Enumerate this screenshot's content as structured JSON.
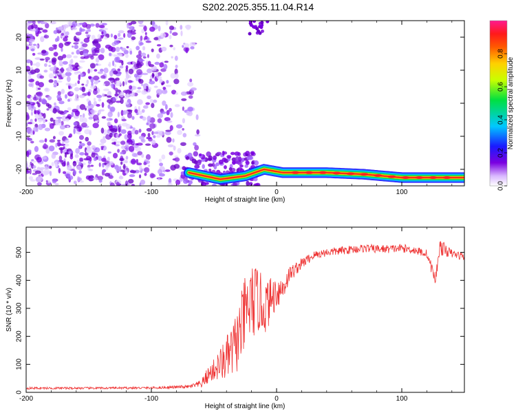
{
  "figure": {
    "title": "S202.2025.355.11.04.R14"
  },
  "chart_data": [
    {
      "type": "heatmap",
      "xlabel": "Height of straight line (km)",
      "ylabel": "Frequency (Hz)",
      "xlim": [
        -200,
        150
      ],
      "ylim": [
        -25,
        25
      ],
      "xticks": [
        -200,
        -100,
        0,
        100
      ],
      "xtick_labels": [
        "-200",
        "-100",
        "0",
        "100"
      ],
      "yticks": [
        -20,
        -10,
        0,
        10,
        20
      ],
      "ytick_labels": [
        "-20",
        "-10",
        "0",
        "10",
        "20"
      ],
      "grid": false,
      "colormap": "rainbow (purple-blue-cyan-green-yellow-orange-red-pink)",
      "colorbar": {
        "label": "Normalized spectral amplitude",
        "range": [
          0,
          1
        ],
        "ticks": [
          0,
          0.2,
          0.4,
          0.6,
          0.8
        ],
        "tick_labels": [
          "0.0",
          "0.2",
          "0.4",
          "0.6",
          "0.8"
        ],
        "placement": "right"
      },
      "features": {
        "scatter_region_x": [
          -200,
          -70
        ],
        "empty_region_x": [
          -70,
          150
        ],
        "ridge": {
          "description": "strong narrow band",
          "x": [
            -70,
            -45,
            -25,
            -10,
            5,
            40,
            70,
            100,
            125,
            150
          ],
          "frequency": [
            -21,
            -23,
            -22,
            -20,
            -21,
            -21,
            -21.5,
            -22.5,
            -22.5,
            -22.5
          ],
          "peak_amplitude": 0.9
        }
      },
      "colors": {
        "low": "#7a00e0",
        "mid": "#00c8ff",
        "high": "#ff2020",
        "top": "#ff1a90"
      }
    },
    {
      "type": "line",
      "xlabel": "Height of straight line (km)",
      "ylabel": "SNR (10 * v/v)",
      "xlim": [
        -200,
        150
      ],
      "ylim": [
        0,
        590
      ],
      "xticks": [
        -200,
        -100,
        0,
        100
      ],
      "xtick_labels": [
        "-200",
        "-100",
        "0",
        "100"
      ],
      "yticks": [
        0,
        100,
        200,
        300,
        400,
        500
      ],
      "ytick_labels": [
        "0",
        "100",
        "200",
        "300",
        "400",
        "500"
      ],
      "grid": false,
      "series": [
        {
          "color": "#ee3030",
          "x": [
            -200,
            -150,
            -100,
            -70,
            -60,
            -55,
            -50,
            -45,
            -40,
            -35,
            -30,
            -25,
            -20,
            -15,
            -10,
            -5,
            0,
            5,
            10,
            15,
            20,
            30,
            40,
            50,
            60,
            70,
            80,
            90,
            100,
            110,
            120,
            127,
            130,
            140,
            150
          ],
          "y": [
            15,
            15,
            16,
            20,
            30,
            60,
            80,
            100,
            120,
            150,
            200,
            280,
            320,
            330,
            300,
            330,
            360,
            370,
            420,
            440,
            460,
            490,
            500,
            505,
            510,
            515,
            512,
            512,
            515,
            508,
            495,
            400,
            520,
            495,
            485
          ],
          "noise_amplitude": [
            4,
            4,
            4,
            6,
            15,
            30,
            40,
            60,
            80,
            100,
            120,
            140,
            140,
            120,
            100,
            80,
            60,
            50,
            30,
            25,
            20,
            15,
            15,
            15,
            15,
            15,
            15,
            15,
            15,
            15,
            15,
            25,
            30,
            15,
            15
          ]
        }
      ]
    }
  ]
}
